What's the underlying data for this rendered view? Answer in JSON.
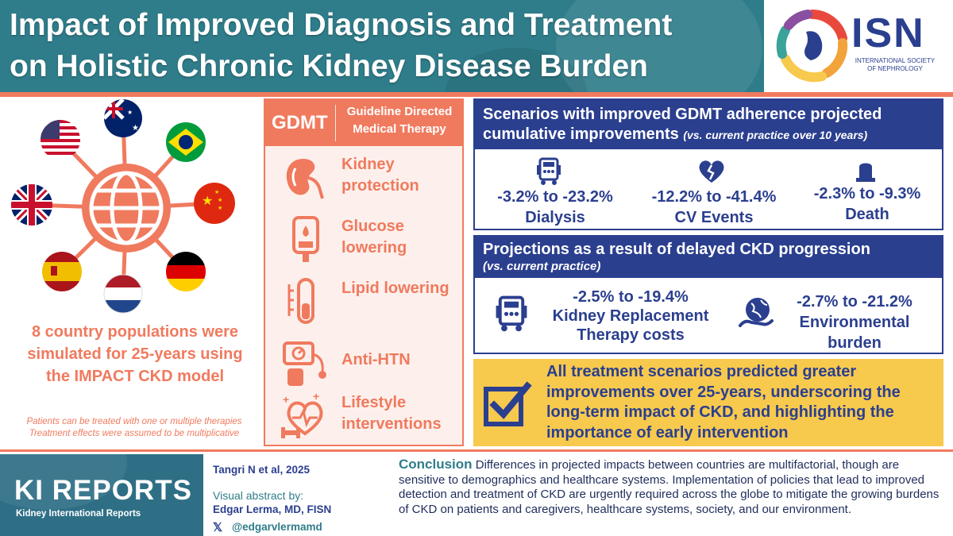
{
  "header": {
    "title_line1": "Impact of Improved Diagnosis and Treatment",
    "title_line2": "on Holistic Chronic Kidney Disease Burden",
    "logo_text": "ISN",
    "logo_subtitle": "INTERNATIONAL SOCIETY OF NEPHROLOGY"
  },
  "left": {
    "countries": [
      "us-flag-icon",
      "australia-flag-icon",
      "brazil-flag-icon",
      "china-flag-icon",
      "germany-flag-icon",
      "netherlands-flag-icon",
      "spain-flag-icon",
      "uk-flag-icon"
    ],
    "main_text": "8 country populations were simulated for 25-years using the IMPACT CKD model",
    "note_line1": "Patients can be treated with one or multiple therapies",
    "note_line2": "Treatment effects were assumed to be multiplicative"
  },
  "gdmt": {
    "abbr": "GDMT",
    "full": "Guideline Directed Medical Therapy",
    "items": [
      {
        "label": "Kidney protection",
        "icon": "kidney-icon"
      },
      {
        "label": "Glucose lowering",
        "icon": "glucose-meter-icon"
      },
      {
        "label": "Lipid lowering",
        "icon": "test-tube-icon"
      },
      {
        "label": "Anti-HTN",
        "icon": "blood-pressure-icon"
      },
      {
        "label": "Lifestyle interventions",
        "icon": "fitness-heart-icon"
      }
    ]
  },
  "panel1": {
    "heading_line1": "Scenarios with improved GDMT adherence projected",
    "heading_line2": "cumulative improvements",
    "heading_note": "(vs. current practice over 10 years)",
    "stats": [
      {
        "range": "-3.2% to -23.2%",
        "label": "Dialysis",
        "icon": "dialysis-machine-icon"
      },
      {
        "range": "-12.2% to -41.4%",
        "label": "CV Events",
        "icon": "broken-heart-icon"
      },
      {
        "range": "-2.3% to -9.3%",
        "label": "Death",
        "icon": "tombstone-icon"
      }
    ]
  },
  "panel2": {
    "heading": "Projections as a result of delayed CKD progression",
    "heading_note": "(vs. current practice)",
    "stats": [
      {
        "range": "-2.5% to -19.4%",
        "label_line1": "Kidney Replacement",
        "label_line2": "Therapy costs",
        "icon": "dialysis-machine-icon"
      },
      {
        "range": "-2.7% to -21.2%",
        "label_line1": "Environmental",
        "label_line2": "burden",
        "icon": "globe-hand-icon"
      }
    ]
  },
  "summary": {
    "text": "All treatment scenarios predicted greater improvements over 25-years, underscoring the long-term impact of CKD, and highlighting the importance of early intervention"
  },
  "footer": {
    "journal_title": "KI REPORTS",
    "journal_subtitle": "Kidney International Reports",
    "citation": "Tangri N et al, 2025",
    "visual_by": "Visual abstract by:",
    "author": "Edgar Lerma, MD, FISN",
    "x_glyph": "𝕏",
    "handle": "@edgarvlermamd",
    "conclusion_label": "Conclusion",
    "conclusion_text": "Differences in projected impacts between countries are multifactorial, though are sensitive to demographics and healthcare systems. Implementation of policies that lead to improved detection and treatment of CKD are urgently required across the globe to mitigate the growing burdens of CKD on patients and caregivers, healthcare systems, society, and our environment."
  },
  "colors": {
    "teal": "#2f7d8a",
    "coral": "#f07a5e",
    "navy": "#2b3f8f",
    "yellow": "#f7c94d"
  }
}
